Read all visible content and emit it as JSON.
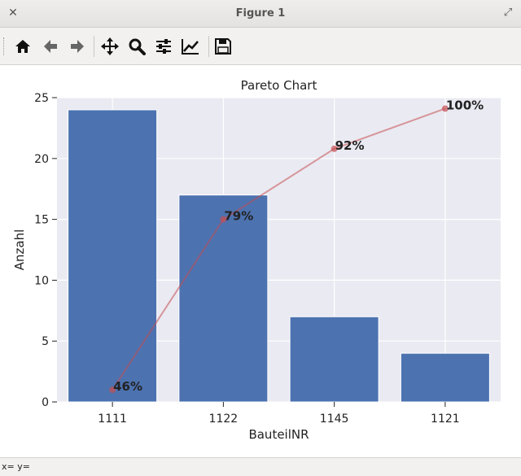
{
  "window": {
    "title": "Figure 1",
    "close_icon": "close-icon",
    "maximize_icon": "maximize-icon"
  },
  "toolbar": {
    "items": [
      {
        "name": "home-icon",
        "tooltip": "Home"
      },
      {
        "name": "back-arrow-icon",
        "tooltip": "Back"
      },
      {
        "name": "forward-arrow-icon",
        "tooltip": "Forward"
      },
      {
        "name": "pan-icon",
        "tooltip": "Pan"
      },
      {
        "name": "zoom-icon",
        "tooltip": "Zoom"
      },
      {
        "name": "subplots-icon",
        "tooltip": "Subplots"
      },
      {
        "name": "edit-curves-icon",
        "tooltip": "Customize"
      },
      {
        "name": "save-icon",
        "tooltip": "Save"
      }
    ]
  },
  "status": {
    "coords": "x= y="
  },
  "chart_data": {
    "type": "bar",
    "title": "Pareto Chart",
    "xlabel": "BauteilNR",
    "ylabel": "Anzahl",
    "categories": [
      "1111",
      "1122",
      "1145",
      "1121"
    ],
    "values": [
      24,
      17,
      7,
      4
    ],
    "ylim": [
      0,
      25
    ],
    "yticks": [
      0,
      5,
      10,
      15,
      20,
      25
    ],
    "grid": true,
    "bar_color": "#4c72b0",
    "background_color": "#eaeaf2",
    "cumulative_line": {
      "color": "#c44e52",
      "points": [
        1,
        15,
        20.8,
        24.1
      ],
      "labels": [
        "46%",
        "79%",
        "92%",
        "100%"
      ]
    }
  }
}
